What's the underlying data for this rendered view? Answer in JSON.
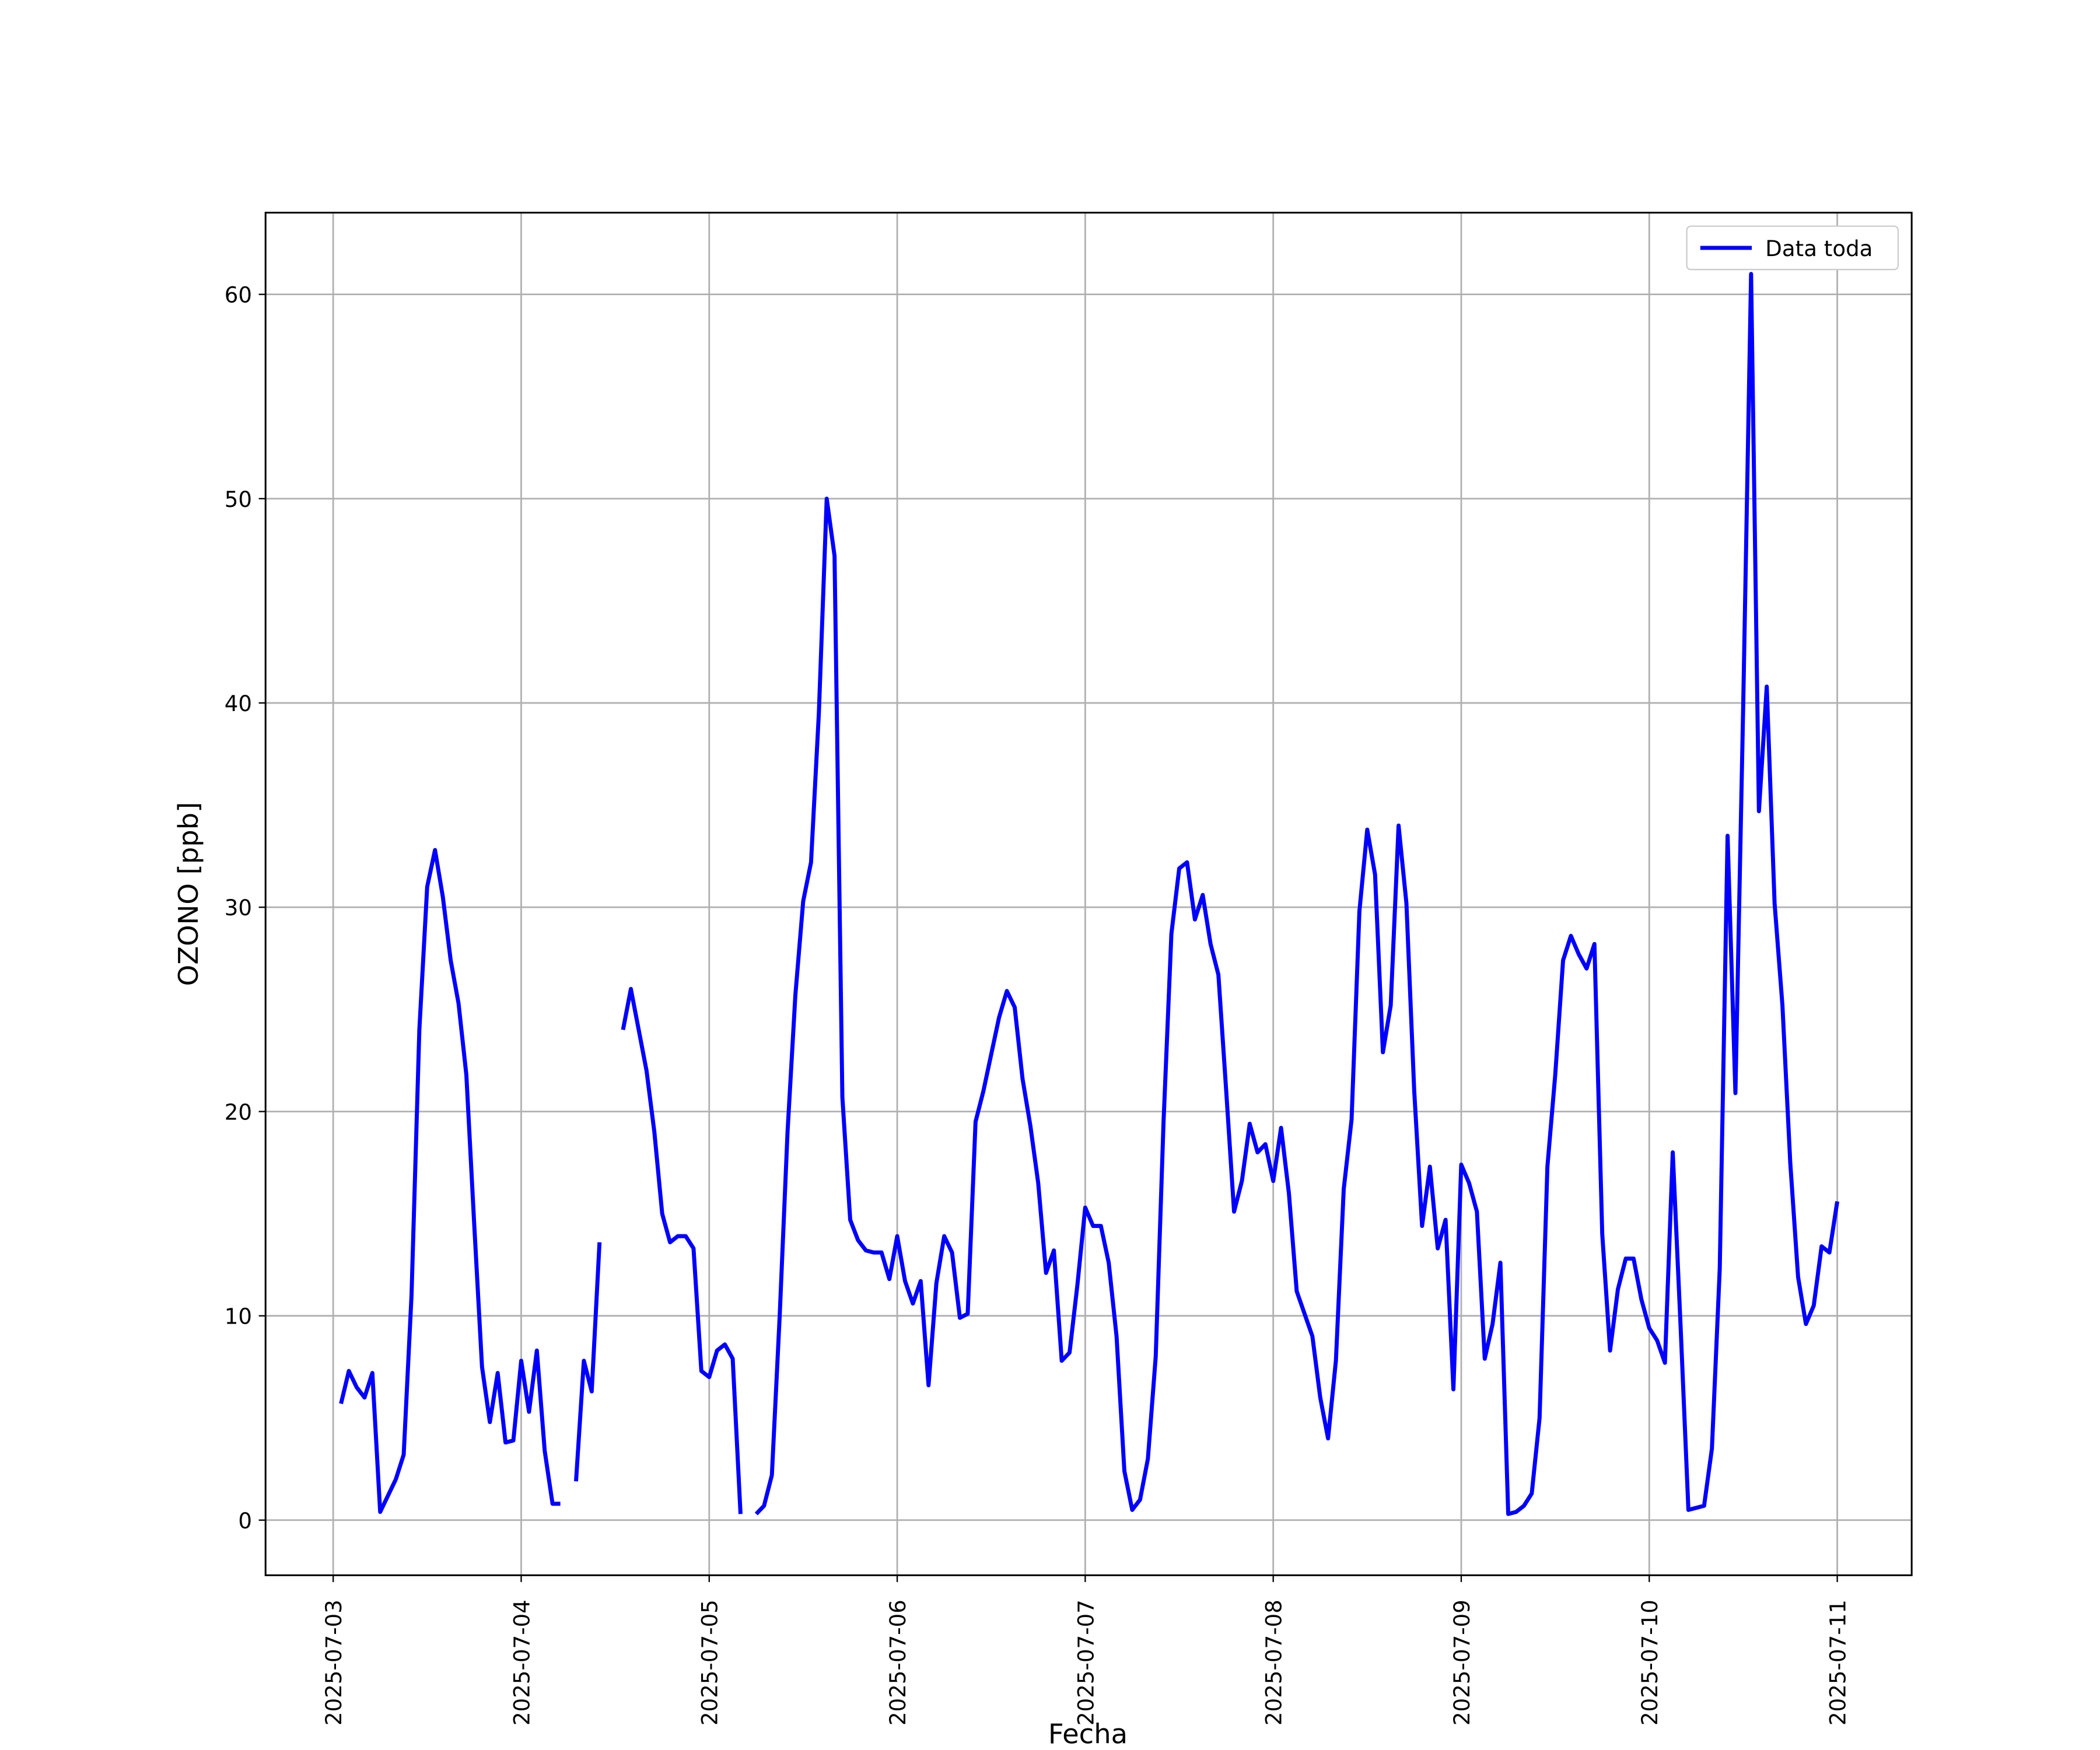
{
  "chart_data": {
    "type": "line",
    "xlabel": "Fecha",
    "ylabel": "OZONO [ppb]",
    "x": [
      "2025-07-03 01:00",
      "2025-07-03 02:00",
      "2025-07-03 03:00",
      "2025-07-03 04:00",
      "2025-07-03 05:00",
      "2025-07-03 06:00",
      "2025-07-03 07:00",
      "2025-07-03 08:00",
      "2025-07-03 09:00",
      "2025-07-03 10:00",
      "2025-07-03 11:00",
      "2025-07-03 12:00",
      "2025-07-03 13:00",
      "2025-07-03 14:00",
      "2025-07-03 15:00",
      "2025-07-03 16:00",
      "2025-07-03 17:00",
      "2025-07-03 18:00",
      "2025-07-03 19:00",
      "2025-07-03 20:00",
      "2025-07-03 21:00",
      "2025-07-03 22:00",
      "2025-07-03 23:00",
      "2025-07-04 00:00",
      "2025-07-04 01:00",
      "2025-07-04 02:00",
      "2025-07-04 03:00",
      "2025-07-04 04:00",
      "2025-07-04 05:00",
      "2025-07-04 06:00",
      "2025-07-04 07:00",
      "2025-07-04 08:00",
      "2025-07-04 09:00",
      "2025-07-04 10:00",
      "2025-07-04 11:00",
      "2025-07-04 12:00",
      "2025-07-04 13:00",
      "2025-07-04 14:00",
      "2025-07-04 15:00",
      "2025-07-04 16:00",
      "2025-07-04 17:00",
      "2025-07-04 18:00",
      "2025-07-04 19:00",
      "2025-07-04 20:00",
      "2025-07-04 21:00",
      "2025-07-04 22:00",
      "2025-07-04 23:00",
      "2025-07-05 00:00",
      "2025-07-05 01:00",
      "2025-07-05 02:00",
      "2025-07-05 03:00",
      "2025-07-05 04:00",
      "2025-07-05 05:00",
      "2025-07-05 06:00",
      "2025-07-05 07:00",
      "2025-07-05 08:00",
      "2025-07-05 09:00",
      "2025-07-05 10:00",
      "2025-07-05 11:00",
      "2025-07-05 12:00",
      "2025-07-05 13:00",
      "2025-07-05 14:00",
      "2025-07-05 15:00",
      "2025-07-05 16:00",
      "2025-07-05 17:00",
      "2025-07-05 18:00",
      "2025-07-05 19:00",
      "2025-07-05 20:00",
      "2025-07-05 21:00",
      "2025-07-05 22:00",
      "2025-07-05 23:00",
      "2025-07-06 00:00",
      "2025-07-06 01:00",
      "2025-07-06 02:00",
      "2025-07-06 03:00",
      "2025-07-06 04:00",
      "2025-07-06 05:00",
      "2025-07-06 06:00",
      "2025-07-06 07:00",
      "2025-07-06 08:00",
      "2025-07-06 09:00",
      "2025-07-06 10:00",
      "2025-07-06 11:00",
      "2025-07-06 12:00",
      "2025-07-06 13:00",
      "2025-07-06 14:00",
      "2025-07-06 15:00",
      "2025-07-06 16:00",
      "2025-07-06 17:00",
      "2025-07-06 18:00",
      "2025-07-06 19:00",
      "2025-07-06 20:00",
      "2025-07-06 21:00",
      "2025-07-06 22:00",
      "2025-07-06 23:00",
      "2025-07-07 00:00",
      "2025-07-07 01:00",
      "2025-07-07 02:00",
      "2025-07-07 03:00",
      "2025-07-07 04:00",
      "2025-07-07 05:00",
      "2025-07-07 06:00",
      "2025-07-07 07:00",
      "2025-07-07 08:00",
      "2025-07-07 09:00",
      "2025-07-07 10:00",
      "2025-07-07 11:00",
      "2025-07-07 12:00",
      "2025-07-07 13:00",
      "2025-07-07 14:00",
      "2025-07-07 15:00",
      "2025-07-07 16:00",
      "2025-07-07 17:00",
      "2025-07-07 18:00",
      "2025-07-07 19:00",
      "2025-07-07 20:00",
      "2025-07-07 21:00",
      "2025-07-07 22:00",
      "2025-07-07 23:00",
      "2025-07-08 00:00",
      "2025-07-08 01:00",
      "2025-07-08 02:00",
      "2025-07-08 03:00",
      "2025-07-08 04:00",
      "2025-07-08 05:00",
      "2025-07-08 06:00",
      "2025-07-08 07:00",
      "2025-07-08 08:00",
      "2025-07-08 09:00",
      "2025-07-08 10:00",
      "2025-07-08 11:00",
      "2025-07-08 12:00",
      "2025-07-08 13:00",
      "2025-07-08 14:00",
      "2025-07-08 15:00",
      "2025-07-08 16:00",
      "2025-07-08 17:00",
      "2025-07-08 18:00",
      "2025-07-08 19:00",
      "2025-07-08 20:00",
      "2025-07-08 21:00",
      "2025-07-08 22:00",
      "2025-07-08 23:00",
      "2025-07-09 00:00",
      "2025-07-09 01:00",
      "2025-07-09 02:00",
      "2025-07-09 03:00",
      "2025-07-09 04:00",
      "2025-07-09 05:00",
      "2025-07-09 06:00",
      "2025-07-09 07:00",
      "2025-07-09 08:00",
      "2025-07-09 09:00",
      "2025-07-09 10:00",
      "2025-07-09 11:00",
      "2025-07-09 12:00",
      "2025-07-09 13:00",
      "2025-07-09 14:00",
      "2025-07-09 15:00",
      "2025-07-09 16:00",
      "2025-07-09 17:00",
      "2025-07-09 18:00",
      "2025-07-09 19:00",
      "2025-07-09 20:00",
      "2025-07-09 21:00",
      "2025-07-09 22:00",
      "2025-07-09 23:00",
      "2025-07-10 00:00",
      "2025-07-10 01:00",
      "2025-07-10 02:00",
      "2025-07-10 03:00",
      "2025-07-10 04:00",
      "2025-07-10 05:00",
      "2025-07-10 06:00",
      "2025-07-10 07:00",
      "2025-07-10 08:00",
      "2025-07-10 09:00",
      "2025-07-10 10:00",
      "2025-07-10 11:00",
      "2025-07-10 12:00",
      "2025-07-10 13:00",
      "2025-07-10 14:00",
      "2025-07-10 15:00",
      "2025-07-10 16:00",
      "2025-07-10 17:00",
      "2025-07-10 18:00",
      "2025-07-10 19:00",
      "2025-07-10 20:00",
      "2025-07-10 21:00",
      "2025-07-10 22:00",
      "2025-07-10 23:00",
      "2025-07-11 00:00"
    ],
    "series": [
      {
        "name": "Data toda",
        "color": "#0000ff",
        "values": [
          5.7,
          7.3,
          6.5,
          6.0,
          7.2,
          0.4,
          1.2,
          2.0,
          3.2,
          11,
          24,
          31,
          32.8,
          30.5,
          27.4,
          25.3,
          21.8,
          14.5,
          7.5,
          4.8,
          7.2,
          3.8,
          3.9,
          7.8,
          5.3,
          8.3,
          3.4,
          0.8,
          0.8,
          null,
          1.9,
          7.8,
          6.3,
          13.6,
          null,
          null,
          24,
          26,
          24,
          22,
          19,
          15,
          13.6,
          13.9,
          13.9,
          13.3,
          7.3,
          7.0,
          8.3,
          8.6,
          7.9,
          0.3,
          null,
          0.3,
          0.7,
          2.2,
          10,
          19,
          25.7,
          30.3,
          32.2,
          39.5,
          50,
          47.2,
          20.7,
          14.7,
          13.7,
          13.2,
          13.1,
          13.1,
          11.8,
          13.9,
          11.7,
          10.6,
          11.7,
          6.6,
          11.6,
          13.9,
          13.1,
          9.9,
          10.1,
          19.5,
          21,
          22.8,
          24.6,
          25.9,
          25.1,
          21.6,
          19.3,
          16.5,
          12.1,
          13.2,
          7.8,
          8.2,
          11.5,
          15.3,
          14.4,
          14.4,
          12.6,
          9,
          2.4,
          0.5,
          1.0,
          3.0,
          8,
          19.5,
          28.7,
          31.9,
          32.2,
          29.4,
          30.6,
          28.2,
          26.7,
          21,
          15.1,
          16.6,
          19.4,
          18,
          18.4,
          16.6,
          19.2,
          16,
          11.2,
          10.1,
          9,
          6,
          4,
          7.8,
          16.2,
          19.6,
          29.8,
          33.8,
          31.6,
          22.9,
          25.2,
          34,
          30.2,
          21,
          14.4,
          17.3,
          13.3,
          14.7,
          6.4,
          17.4,
          16.5,
          15.1,
          7.9,
          9.6,
          12.6,
          0.3,
          0.4,
          0.7,
          1.3,
          5,
          17.3,
          21.8,
          27.4,
          28.6,
          27.7,
          27,
          28.2,
          14,
          8.3,
          11.3,
          12.8,
          12.8,
          10.8,
          9.4,
          8.8,
          7.7,
          18,
          9.5,
          0.5,
          0.6,
          0.7,
          3.5,
          12.3,
          33.5,
          20.9,
          40,
          61,
          34.7,
          40.8,
          30.2,
          25.2,
          17.5,
          11.9,
          9.6,
          10.5,
          13.4,
          13.1,
          15.6
        ]
      }
    ],
    "xlim": [
      "2025-07-02 15:22",
      "2025-07-11 09:30"
    ],
    "xticks": [
      "2025-07-03",
      "2025-07-04",
      "2025-07-05",
      "2025-07-06",
      "2025-07-07",
      "2025-07-08",
      "2025-07-09",
      "2025-07-10",
      "2025-07-11"
    ],
    "ylim": [
      -2.7,
      64.0
    ],
    "yticks": [
      0,
      10,
      20,
      30,
      40,
      50,
      60
    ],
    "grid": true,
    "legend": "upper right"
  }
}
